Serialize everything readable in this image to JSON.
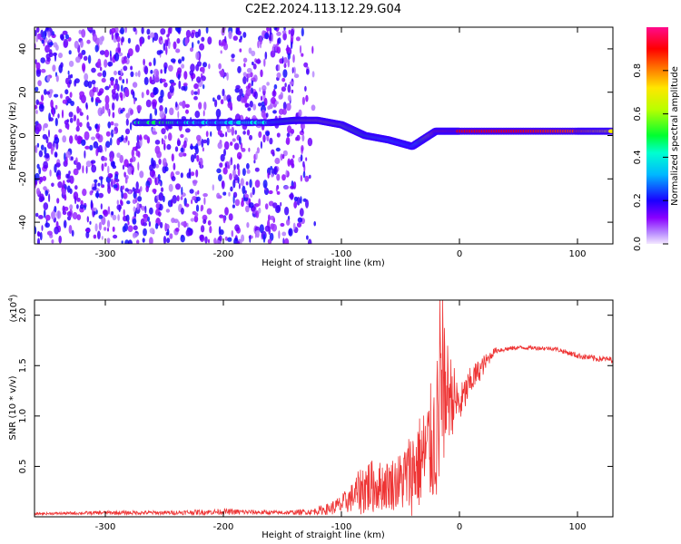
{
  "title": "C2E2.2024.113.12.29.G04",
  "chart_data": [
    {
      "type": "heatmap",
      "description_of_content": "spectrogram",
      "xlabel": "Height of straight line (km)",
      "ylabel": "Frequency (Hz)",
      "xlim": [
        -360,
        130
      ],
      "ylim": [
        -50,
        50
      ],
      "x_ticks": [
        -300,
        -200,
        -100,
        0,
        100
      ],
      "y_ticks": [
        -40,
        -20,
        0,
        20,
        40
      ],
      "colorbar": {
        "label": "Normalized spectral amplitude",
        "range": [
          0,
          1
        ],
        "ticks": [
          "0.0",
          "0.2",
          "0.4",
          "0.6",
          "0.8"
        ],
        "colormap": [
          "#e9d6ff",
          "#8a00ff",
          "#0000ff",
          "#00e5ff",
          "#00ff00",
          "#ffff00",
          "#ff0000",
          "#ff0080"
        ]
      },
      "traces": [
        {
          "name": "low-frequency line",
          "x": [
            -275,
            -250,
            -230,
            -200,
            -160,
            -140,
            -120,
            -100,
            -80,
            -60,
            -40,
            -20,
            0,
            50,
            100,
            130
          ],
          "y": [
            6,
            6,
            6,
            6,
            6,
            7,
            7,
            5,
            0,
            -2,
            -5,
            2,
            2,
            2,
            2,
            2
          ],
          "intensity": [
            0.45,
            0.5,
            0.4,
            0.35,
            0.4,
            0.55,
            0.7,
            0.6,
            0.5,
            0.4,
            0.3,
            0.85,
            0.9,
            0.9,
            0.85,
            0.7
          ]
        }
      ]
    },
    {
      "type": "line",
      "xlabel": "Height of straight line (km)",
      "ylabel": "SNR (10 * v/v)",
      "multiplier_label": "(x10",
      "multiplier_exponent": "4",
      "xlim": [
        -360,
        130
      ],
      "ylim": [
        0,
        2.15
      ],
      "x_ticks": [
        -300,
        -200,
        -100,
        0,
        100
      ],
      "y_ticks": [
        "0.5",
        "1.0",
        "1.5",
        "2.0"
      ],
      "line_color": "#ee3333",
      "series": [
        {
          "x": [
            -360,
            -300,
            -250,
            -200,
            -150,
            -125,
            -110,
            -100,
            -90,
            -80,
            -70,
            -60,
            -50,
            -40,
            -30,
            -20,
            -15,
            -10,
            0,
            10,
            20,
            30,
            50,
            80,
            100,
            115,
            130
          ],
          "y": [
            0.03,
            0.04,
            0.04,
            0.05,
            0.04,
            0.05,
            0.08,
            0.12,
            0.2,
            0.3,
            0.3,
            0.32,
            0.35,
            0.45,
            0.6,
            0.8,
            1.1,
            1.25,
            1.1,
            1.35,
            1.5,
            1.65,
            1.68,
            1.67,
            1.6,
            1.57,
            1.56
          ],
          "spread": [
            0.01,
            0.02,
            0.02,
            0.03,
            0.02,
            0.03,
            0.06,
            0.1,
            0.15,
            0.3,
            0.25,
            0.25,
            0.3,
            0.45,
            0.5,
            0.7,
            0.9,
            0.5,
            0.2,
            0.15,
            0.1,
            0.03,
            0.02,
            0.02,
            0.03,
            0.03,
            0.03
          ]
        }
      ]
    }
  ]
}
